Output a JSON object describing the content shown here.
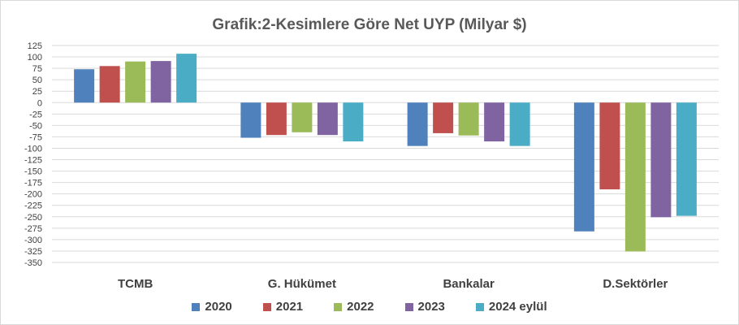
{
  "chart_data": {
    "type": "bar",
    "title": "Grafik:2-Kesimlere Göre Net UYP (Milyar $)",
    "xlabel": "",
    "ylabel": "",
    "categories": [
      "TCMB",
      "G. Hükümet",
      "Bankalar",
      "D.Sektörler"
    ],
    "ylim": [
      -350,
      125
    ],
    "yticks": [
      125,
      100,
      75,
      50,
      25,
      0,
      -25,
      -50,
      -75,
      -100,
      -125,
      -150,
      -175,
      -200,
      -225,
      -250,
      -275,
      -300,
      -325,
      -350
    ],
    "grid": true,
    "legend_position": "bottom",
    "series": [
      {
        "name": "2020",
        "color": "#4f81bd",
        "values": [
          73,
          -77,
          -95,
          -282
        ]
      },
      {
        "name": "2021",
        "color": "#c0504d",
        "values": [
          80,
          -71,
          -67,
          -190
        ]
      },
      {
        "name": "2022",
        "color": "#9bbb59",
        "values": [
          90,
          -65,
          -72,
          -326
        ]
      },
      {
        "name": "2023",
        "color": "#8064a2",
        "values": [
          91,
          -71,
          -85,
          -251
        ]
      },
      {
        "name": "2024 eylül",
        "color": "#4bacc6",
        "values": [
          107,
          -85,
          -95,
          -248
        ]
      }
    ]
  }
}
